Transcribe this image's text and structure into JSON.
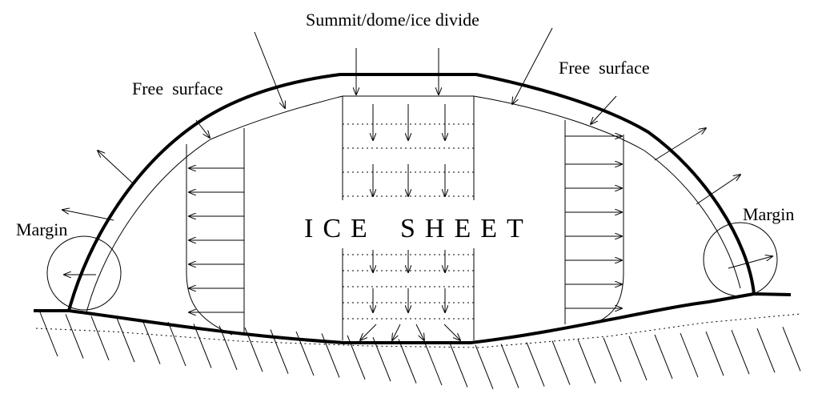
{
  "labels": {
    "summit": "Summit/dome/ice divide",
    "free_surface_left": "Free  surface",
    "free_surface_right": "Free  surface",
    "margin_left": "Margin",
    "margin_right": "Margin",
    "ice_sheet_word1": "ICE",
    "ice_sheet_word2": "SHEET"
  }
}
